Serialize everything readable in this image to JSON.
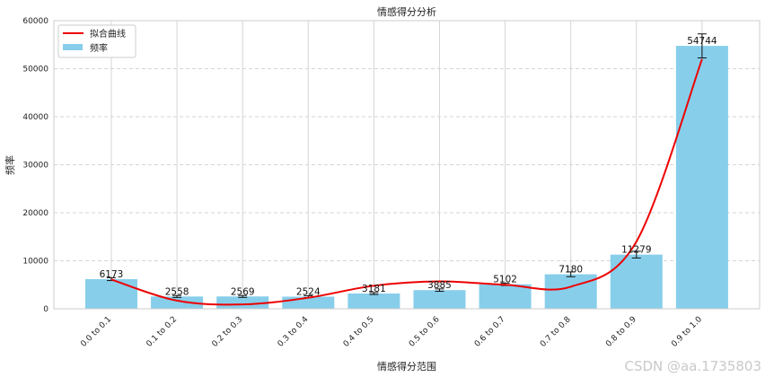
{
  "watermark": "CSDN @aa.1735803",
  "chart_data": {
    "type": "bar",
    "title": "情感得分分析",
    "xlabel": "情感得分范围",
    "ylabel": "频率",
    "categories": [
      "0.0 to 0.1",
      "0.1 to 0.2",
      "0.2 to 0.3",
      "0.3 to 0.4",
      "0.4 to 0.5",
      "0.5 to 0.6",
      "0.6 to 0.7",
      "0.7 to 0.8",
      "0.8 to 0.9",
      "0.9 to 1.0"
    ],
    "series": [
      {
        "name": "频率",
        "values": [
          6173,
          2558,
          2569,
          2524,
          3181,
          3885,
          5102,
          7180,
          11279,
          54744
        ],
        "error": [
          300,
          200,
          200,
          200,
          200,
          250,
          250,
          500,
          700,
          2500
        ],
        "color": "#87ceeb"
      }
    ],
    "fit_curve": {
      "name": "拟合曲线",
      "color": "#ee0000",
      "values": [
        6100,
        1700,
        900,
        2300,
        4800,
        5700,
        5000,
        4600,
        14000,
        52000
      ]
    },
    "ylim": [
      0,
      60000
    ],
    "yticks": [
      0,
      10000,
      20000,
      30000,
      40000,
      50000,
      60000
    ],
    "grid": true,
    "legend": "top-left"
  }
}
